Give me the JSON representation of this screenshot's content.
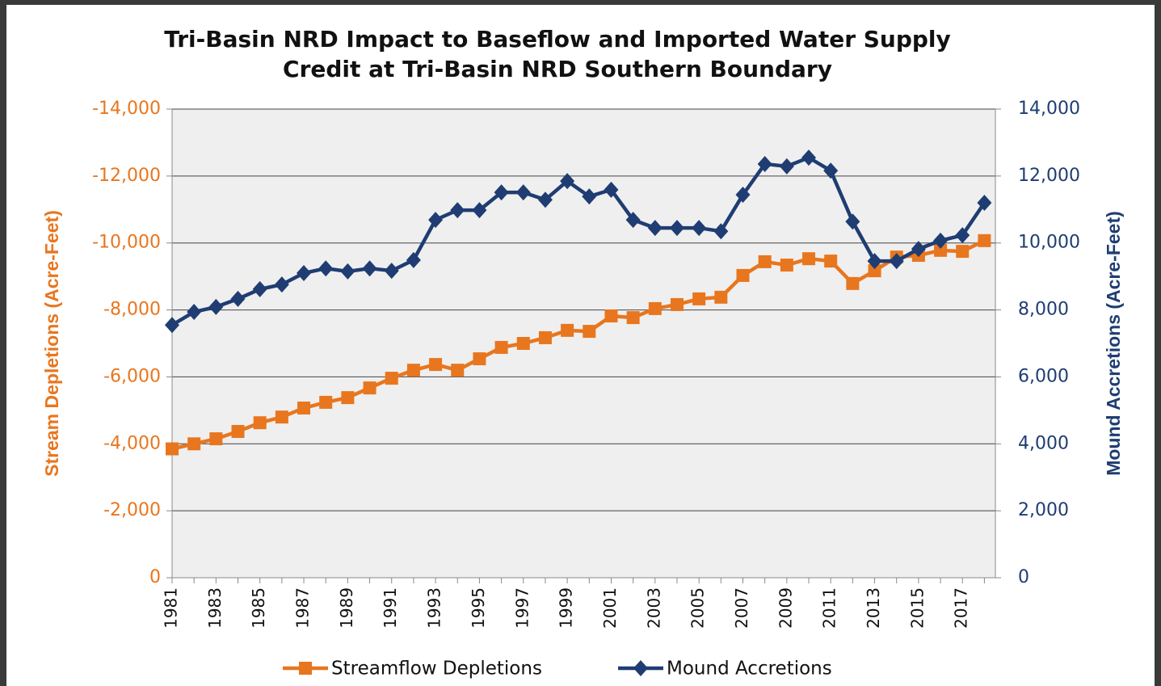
{
  "chart_data": {
    "type": "line",
    "title": "Tri-Basin NRD Impact to Baseflow and Imported Water Supply",
    "subtitle": "Credit at Tri-Basin NRD Southern Boundary",
    "y_label": "Stream  Depletions (Acre-Feet)",
    "y2_label": "Mound Accretions (Acre-Feet)",
    "categories": [
      "1981",
      null,
      "1983",
      null,
      "1985",
      null,
      "1987",
      null,
      "1989",
      null,
      "1991",
      null,
      "1993",
      null,
      "1995",
      null,
      "1997",
      null,
      "1999",
      null,
      "2001",
      null,
      "2003",
      null,
      "2005",
      null,
      "2007",
      null,
      "2009",
      null,
      "2011",
      null,
      "2013",
      null,
      "2015",
      null,
      "2017",
      null
    ],
    "ylim": [
      0,
      -14000
    ],
    "yticks": [
      0,
      {
        "value": -2000,
        "label": "-2,000"
      },
      {
        "value": -4000,
        "label": "-4,000"
      },
      {
        "value": -6000,
        "label": "-6,000"
      },
      {
        "value": -8000,
        "label": "-8,000"
      },
      {
        "value": -10000,
        "label": "-10,000"
      },
      {
        "value": -12000,
        "label": "-12,000"
      },
      {
        "value": -14000,
        "label": "-14,000"
      }
    ],
    "y2lim": [
      0,
      14000
    ],
    "y2ticks": [
      0,
      {
        "value": 2000,
        "label": "2,000"
      },
      {
        "value": 4000,
        "label": "4,000"
      },
      {
        "value": 6000,
        "label": "6,000"
      },
      {
        "value": 8000,
        "label": "8,000"
      },
      {
        "value": 10000,
        "label": "10,000"
      },
      {
        "value": 12000,
        "label": "12,000"
      },
      {
        "value": 14000,
        "label": "14,000"
      }
    ],
    "grid": true,
    "legend": "bottom",
    "series": [
      {
        "name": "Streamflow Depletions",
        "color": "#e8761e",
        "marker": "square",
        "values": [
          -3850,
          -4000,
          -4150,
          -4370,
          -4630,
          -4800,
          -5070,
          -5240,
          -5380,
          -5670,
          -5960,
          -6200,
          -6370,
          -6200,
          -6540,
          -6880,
          -7000,
          -7170,
          -7390,
          -7360,
          -7820,
          -7770,
          -8040,
          -8160,
          -8330,
          -8380,
          -9030,
          -9440,
          -9340,
          -9530,
          -9460,
          -8790,
          -9170,
          -9580,
          -9630,
          -9780,
          -9750,
          -10070
        ]
      },
      {
        "name": "Mound Accretions",
        "color": "#1f3d72",
        "marker": "diamond",
        "axis": "y2",
        "values": [
          7550,
          7940,
          8090,
          8330,
          8620,
          8760,
          9100,
          9240,
          9150,
          9240,
          9170,
          9490,
          10690,
          10980,
          10980,
          11510,
          11510,
          11290,
          11850,
          11390,
          11590,
          10690,
          10450,
          10450,
          10450,
          10350,
          11440,
          12360,
          12290,
          12550,
          12160,
          10640,
          9460,
          9460,
          9820,
          10070,
          10230,
          11200
        ]
      }
    ]
  }
}
